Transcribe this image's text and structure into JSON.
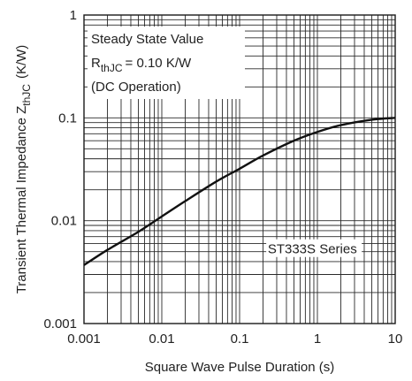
{
  "chart_data": {
    "type": "line",
    "xscale": "log",
    "yscale": "log",
    "xlim": [
      0.001,
      10
    ],
    "ylim": [
      0.001,
      1
    ],
    "xlabel": "Square Wave Pulse Duration (s)",
    "ylabel_main": "Transient Thermal Impedance Z",
    "ylabel_sub": "thJC",
    "ylabel_unit": "(K/W)",
    "grid": true,
    "x_ticks": [
      "0.001",
      "0.01",
      "0.1",
      "1",
      "10"
    ],
    "y_ticks": [
      "0.001",
      "0.01",
      "0.1",
      "1"
    ],
    "series": [
      {
        "name": "ST333S Series",
        "x": [
          0.001,
          0.002,
          0.005,
          0.01,
          0.02,
          0.05,
          0.1,
          0.2,
          0.5,
          1,
          2,
          5,
          10
        ],
        "y": [
          0.0037,
          0.0052,
          0.0078,
          0.011,
          0.0155,
          0.024,
          0.032,
          0.043,
          0.06,
          0.073,
          0.085,
          0.096,
          0.1
        ]
      }
    ],
    "annotations": {
      "steady_state": "Steady State Value",
      "rth_main": "R",
      "rth_sub": "thJC",
      "rth_value": "= 0.10 K/W",
      "dc_operation": "(DC Operation)",
      "series_label": "ST333S Series"
    }
  }
}
